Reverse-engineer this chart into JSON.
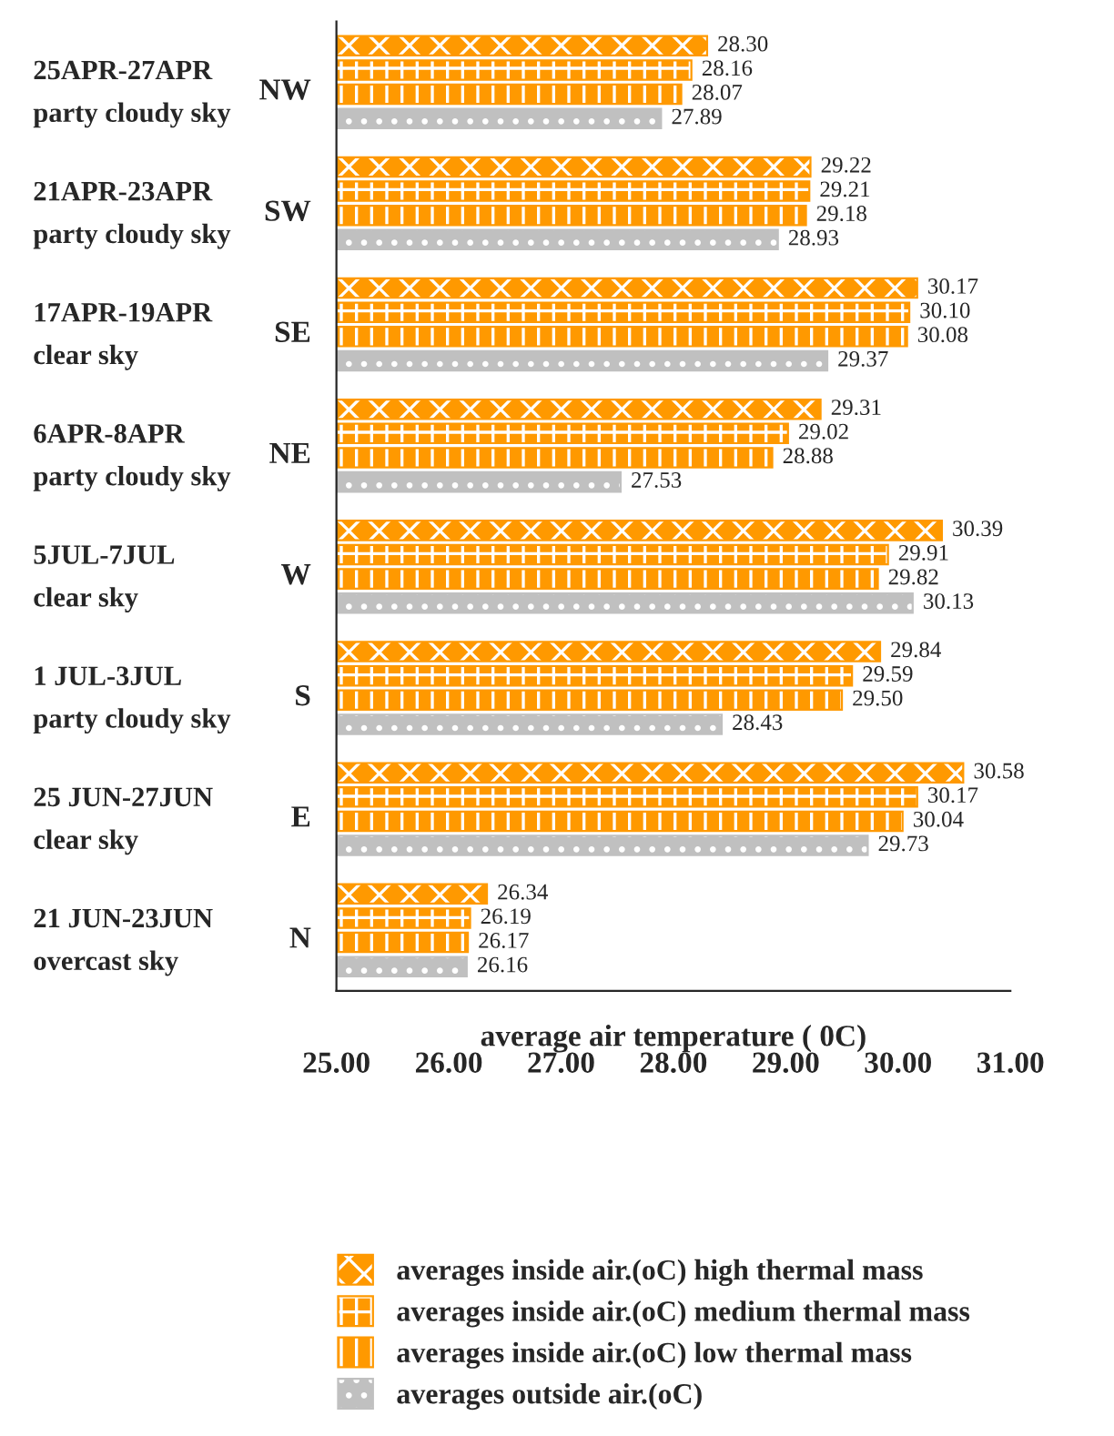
{
  "chart_data": {
    "type": "bar",
    "orientation": "horizontal",
    "xlabel": "average air temperature ( 0C)",
    "categories": [
      "25APR-27APR\nparty cloudy sky",
      "21APR-23APR\nparty cloudy sky",
      "17APR-19APR\nclear sky",
      "6APR-8APR\nparty cloudy sky",
      "5JUL-7JUL\nclear sky",
      "1 JUL-3JUL\nparty cloudy sky",
      "25 JUN-27JUN\nclear sky",
      "21 JUN-23JUN\novercast sky"
    ],
    "annotations": [
      "NW",
      "SW",
      "SE",
      "NE",
      "W",
      "S",
      "E",
      "N"
    ],
    "series": [
      {
        "name": "averages inside air.(oC) high thermal mass",
        "color": "#ff9900",
        "values": [
          28.3,
          29.22,
          30.17,
          29.31,
          30.39,
          29.84,
          30.58,
          26.34
        ],
        "value_labels": [
          "28.30",
          "29.22",
          "30.17",
          "29.31",
          "30.39",
          "29.84",
          "30.58",
          "26.34"
        ]
      },
      {
        "name": "averages inside air.(oC) medium thermal mass",
        "color": "#ff9900",
        "values": [
          28.16,
          29.21,
          30.1,
          29.02,
          29.91,
          29.59,
          30.17,
          26.19
        ],
        "value_labels": [
          "28.16",
          "29.21",
          "30.10",
          "29.02",
          "29.91",
          "29.59",
          "30.17",
          "26.19"
        ]
      },
      {
        "name": "averages inside air.(oC) low thermal mass",
        "color": "#ff9900",
        "values": [
          28.07,
          29.18,
          30.08,
          28.88,
          29.82,
          29.5,
          30.04,
          26.17
        ],
        "value_labels": [
          "28.07",
          "29.18",
          "30.08",
          "28.88",
          "29.82",
          "29.50",
          "30.04",
          "26.17"
        ]
      },
      {
        "name": "averages outside air.(oC)",
        "color": "#c0c0c0",
        "values": [
          27.89,
          28.93,
          29.37,
          27.53,
          30.13,
          28.43,
          29.73,
          26.16
        ],
        "value_labels": [
          "27.89",
          "28.93",
          "29.37",
          "27.53",
          "30.13",
          "28.43",
          "29.73",
          "26.16"
        ]
      }
    ],
    "xlim": [
      25,
      31
    ],
    "xticks": [
      {
        "value": 25,
        "label": "25.00"
      },
      {
        "value": 26,
        "label": "26.00"
      },
      {
        "value": 27,
        "label": "27.00"
      },
      {
        "value": 28,
        "label": "28.00"
      },
      {
        "value": 29,
        "label": "29.00"
      },
      {
        "value": 30,
        "label": "30.00"
      },
      {
        "value": 31,
        "label": "31.00"
      }
    ],
    "grid": false,
    "legend": "bottom"
  }
}
